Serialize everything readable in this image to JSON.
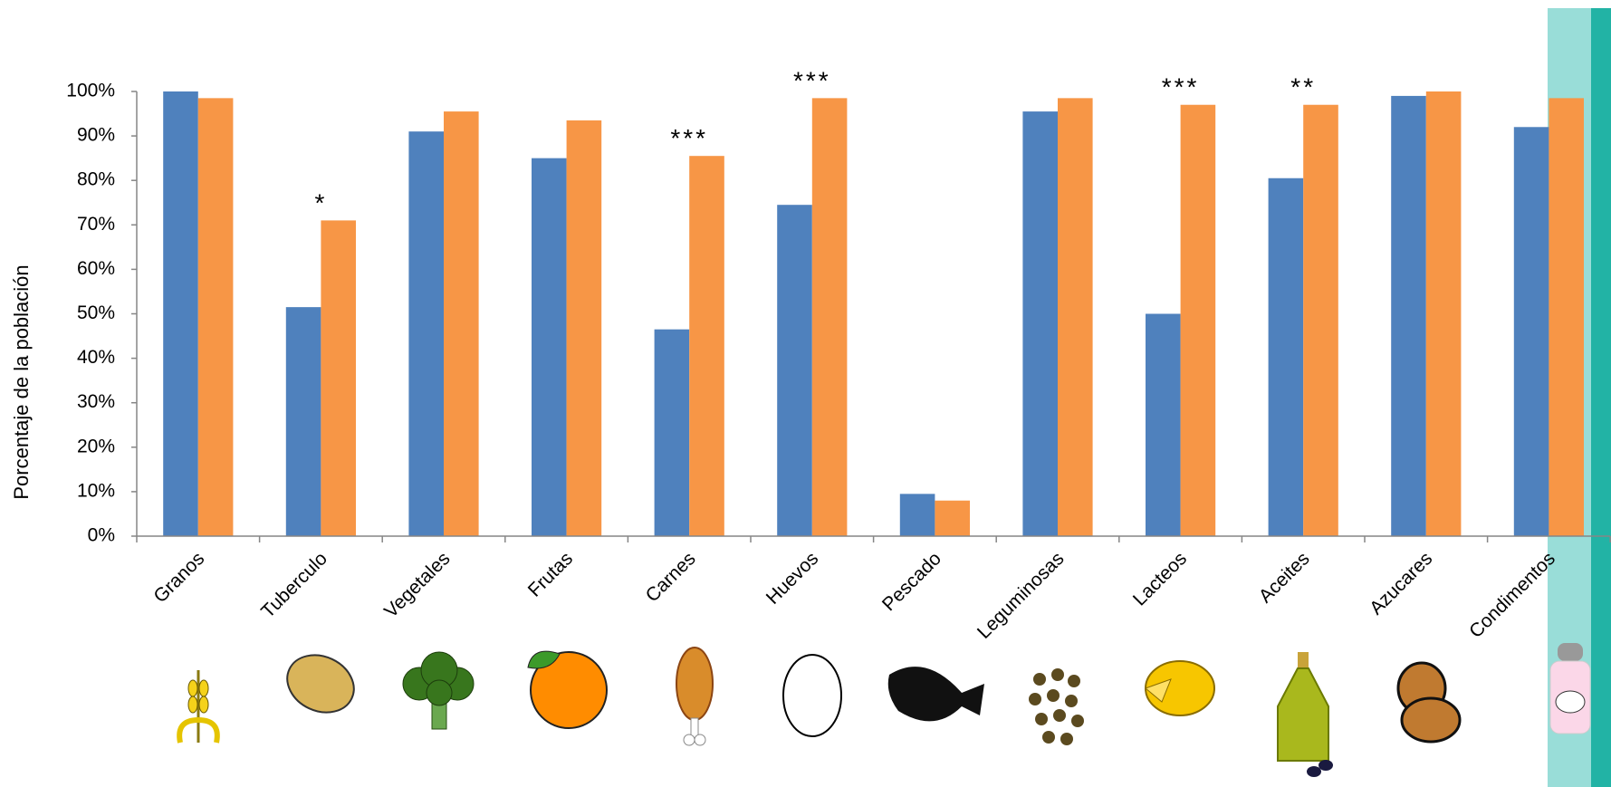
{
  "chart_data": {
    "type": "bar",
    "y_label": "Porcentaje de la población",
    "categories": [
      "Granos",
      "Tuberculo",
      "Vegetales",
      "Frutas",
      "Carnes",
      "Huevos",
      "Pescado",
      "Leguminosas",
      "Lacteos",
      "Aceites",
      "Azucares",
      "Condimentos"
    ],
    "series": [
      {
        "color": "#4f81bd",
        "values": [
          100,
          51.5,
          91,
          85,
          46.5,
          74.5,
          9.5,
          95.5,
          50,
          80.5,
          99,
          92
        ]
      },
      {
        "color": "#f79646",
        "values": [
          98.5,
          71,
          95.5,
          93.5,
          85.5,
          98.5,
          8,
          98.5,
          97,
          97,
          100,
          98.5
        ]
      }
    ],
    "significance": [
      null,
      "*",
      null,
      null,
      "***",
      "***",
      null,
      null,
      "***",
      "**",
      null,
      null
    ],
    "ylim": [
      0,
      100
    ],
    "yticks": [
      {
        "value": 0,
        "label": "0%"
      },
      {
        "value": 10,
        "label": "10%"
      },
      {
        "value": 20,
        "label": "20%"
      },
      {
        "value": 30,
        "label": "30%"
      },
      {
        "value": 40,
        "label": "40%"
      },
      {
        "value": 50,
        "label": "50%"
      },
      {
        "value": 60,
        "label": "60%"
      },
      {
        "value": 70,
        "label": "70%"
      },
      {
        "value": 80,
        "label": "80%"
      },
      {
        "value": 90,
        "label": "90%"
      },
      {
        "value": 100,
        "label": "100%"
      }
    ],
    "grid": false
  }
}
